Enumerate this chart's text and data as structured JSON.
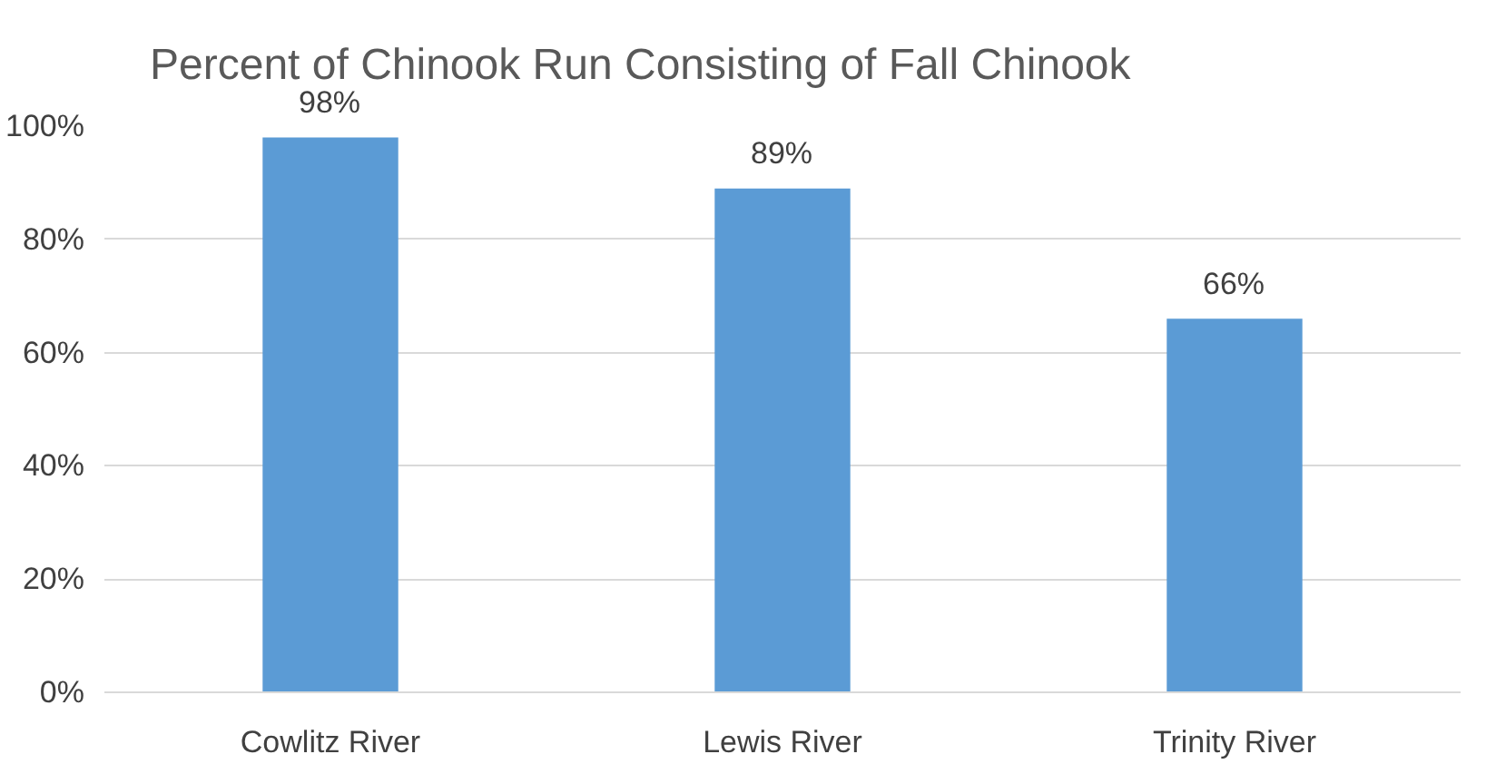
{
  "chart_data": {
    "type": "bar",
    "title": "Percent of Chinook Run Consisting of Fall Chinook",
    "categories": [
      "Cowlitz River",
      "Lewis River",
      "Trinity River"
    ],
    "values": [
      98,
      89,
      66
    ],
    "value_labels": [
      "98%",
      "89%",
      "66%"
    ],
    "color": "#5b9bd5",
    "ylim": [
      0,
      100
    ],
    "yticks": [
      {
        "value": 0,
        "label": "0%"
      },
      {
        "value": 20,
        "label": "20%"
      },
      {
        "value": 40,
        "label": "40%"
      },
      {
        "value": 60,
        "label": "60%"
      },
      {
        "value": 80,
        "label": "80%"
      },
      {
        "value": 100,
        "label": "100%"
      }
    ],
    "grid": "y"
  }
}
